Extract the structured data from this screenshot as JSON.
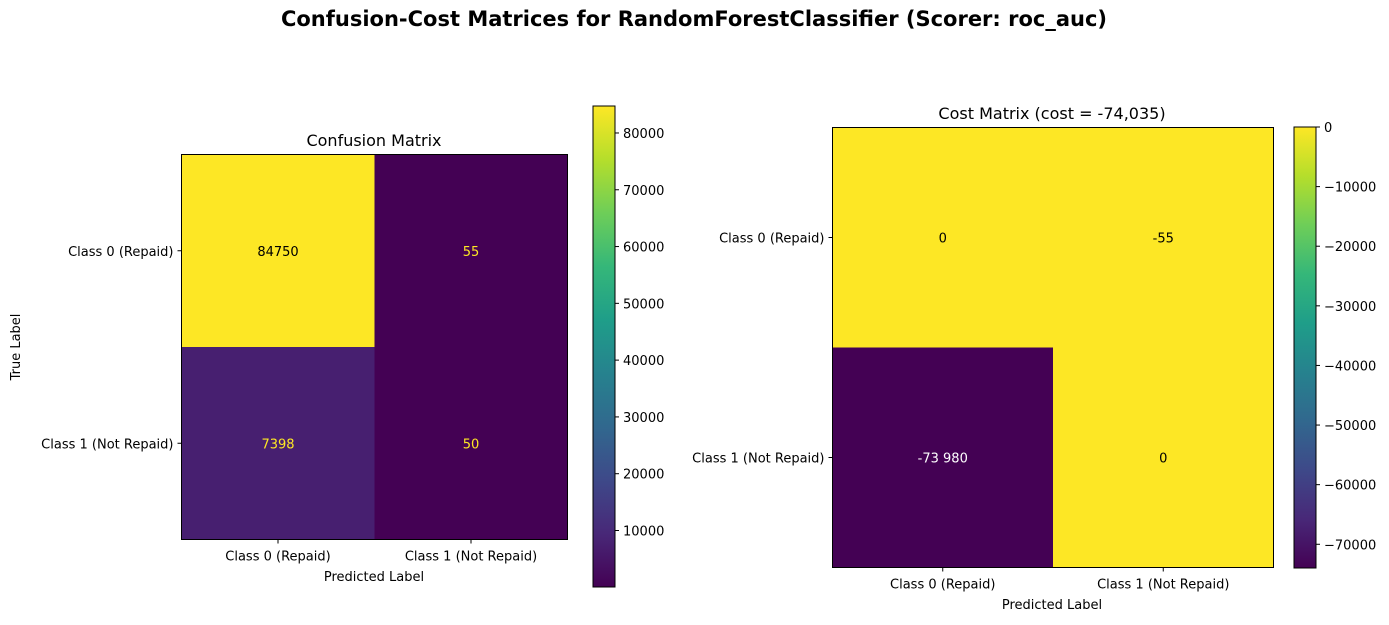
{
  "figure_title": "Confusion-Cost Matrices for RandomForestClassifier (Scorer: roc_auc)",
  "colors": {
    "viridis": [
      "#440154",
      "#482878",
      "#3e4989",
      "#31688e",
      "#26828e",
      "#1f9e89",
      "#35b779",
      "#6ece58",
      "#b5de2b",
      "#fde725"
    ],
    "text_on_dark": "#fde725",
    "text_on_light": "#000000",
    "text_white": "#ffffff"
  },
  "chart_data": [
    {
      "type": "heatmap",
      "title": "Confusion Matrix",
      "xlabel": "Predicted Label",
      "ylabel": "True Label",
      "x_categories": [
        "Class 0 (Repaid)",
        "Class 1 (Not Repaid)"
      ],
      "y_categories": [
        "Class 0 (Repaid)",
        "Class 1 (Not Repaid)"
      ],
      "values": [
        [
          84750,
          55
        ],
        [
          7398,
          50
        ]
      ],
      "cell_labels": [
        [
          "84750",
          "55"
        ],
        [
          "7398",
          "50"
        ]
      ],
      "colorbar": {
        "vmin": 50,
        "vmax": 84750,
        "ticks": [
          10000,
          20000,
          30000,
          40000,
          50000,
          60000,
          70000,
          80000
        ],
        "tick_labels": [
          "10000",
          "20000",
          "30000",
          "40000",
          "50000",
          "60000",
          "70000",
          "80000"
        ]
      }
    },
    {
      "type": "heatmap",
      "title": "Cost Matrix (cost = -74,035)",
      "xlabel": "Predicted Label",
      "ylabel": "",
      "x_categories": [
        "Class 0 (Repaid)",
        "Class 1 (Not Repaid)"
      ],
      "y_categories": [
        "Class 0 (Repaid)",
        "Class 1 (Not Repaid)"
      ],
      "values": [
        [
          0,
          -55
        ],
        [
          -73980,
          0
        ]
      ],
      "cell_labels": [
        [
          "0",
          "-55"
        ],
        [
          "-73 980",
          "0"
        ]
      ],
      "colorbar": {
        "vmin": -73980,
        "vmax": 0,
        "ticks": [
          0,
          -10000,
          -20000,
          -30000,
          -40000,
          -50000,
          -60000,
          -70000
        ],
        "tick_labels": [
          "0",
          "−10000",
          "−20000",
          "−30000",
          "−40000",
          "−50000",
          "−60000",
          "−70000"
        ]
      }
    }
  ]
}
